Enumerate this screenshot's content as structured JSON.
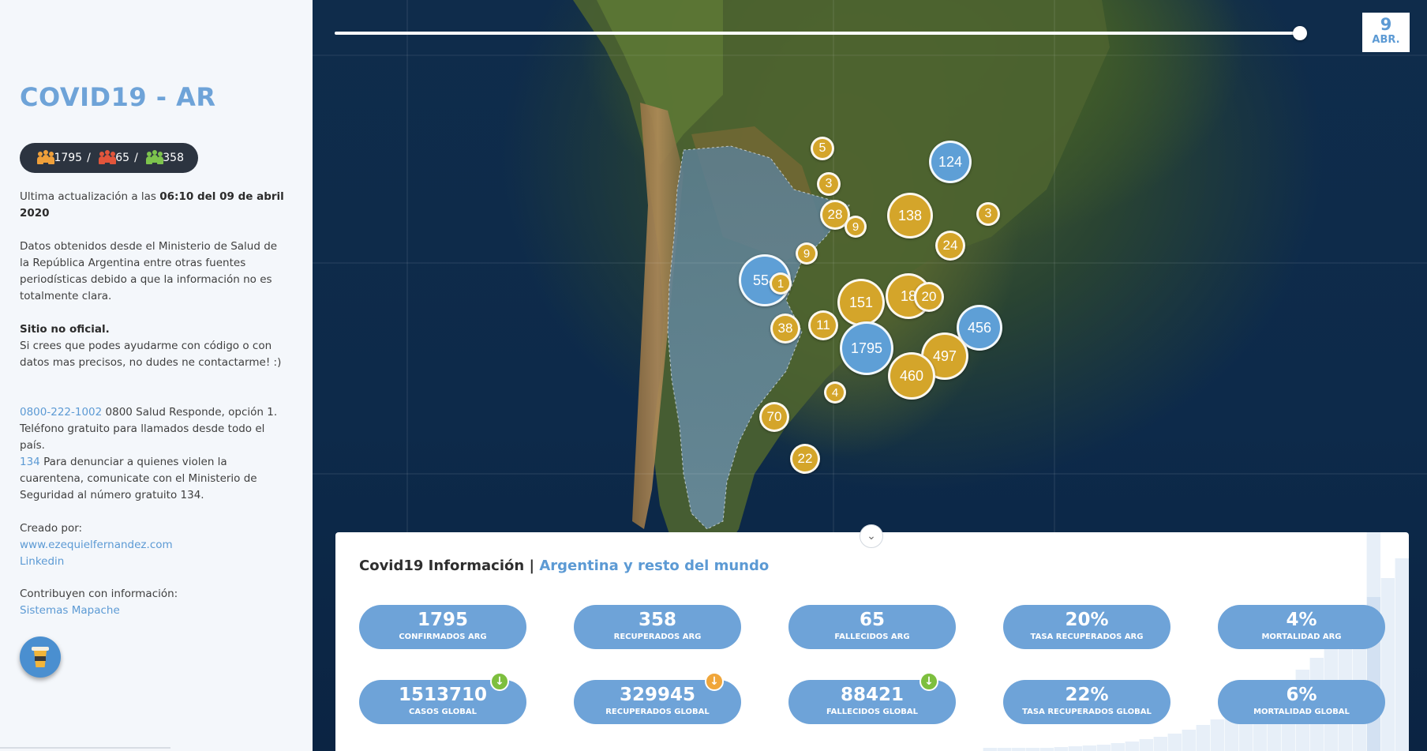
{
  "sidebar": {
    "title": "COVID19 - AR",
    "stats": {
      "confirmed": "1795",
      "deaths": "65",
      "recovered": "358",
      "sep": "/"
    },
    "update_prefix": "Ultima actualización a las ",
    "update_bold": "06:10 del 09 de abril 2020",
    "source_text": "Datos obtenidos desde el Ministerio de Salud de la República Argentina entre otras fuentes periodísticas debido a que la información no es totalmente clara.",
    "unofficial_title": "Sitio no oficial.",
    "unofficial_text": "Si crees que podes ayudarme con código o con datos mas precisos, no dudes ne contactarme! :)",
    "phone_link": "0800-222-1002",
    "phone_text": " 0800 Salud Responde, opción 1. Teléfono gratuito para llamados desde todo el país.",
    "security_link": "134",
    "security_text": " Para denunciar a quienes violen la cuarentena, comunicate con el Ministerio de Seguridad al número gratuito 134.",
    "created_by": "Creado por:",
    "author_link": "www.ezequielfernandez.com",
    "linkedin_link": "Linkedin",
    "contributors_label": "Contribuyen con información:",
    "contributor_link": "Sistemas Mapache",
    "coffee_icon": "coffee-cup-icon"
  },
  "map": {
    "date_day": "9",
    "date_month": "ABR.",
    "timeline_progress": 1.0,
    "clusters": [
      {
        "value": "5",
        "color": "gold"
      },
      {
        "value": "124",
        "color": "blue"
      },
      {
        "value": "3",
        "color": "gold"
      },
      {
        "value": "28",
        "color": "gold"
      },
      {
        "value": "9",
        "color": "gold"
      },
      {
        "value": "138",
        "color": "gold"
      },
      {
        "value": "3",
        "color": "gold"
      },
      {
        "value": "24",
        "color": "gold"
      },
      {
        "value": "9",
        "color": "gold"
      },
      {
        "value": "554",
        "color": "blue"
      },
      {
        "value": "1",
        "color": "gold"
      },
      {
        "value": "151",
        "color": "gold"
      },
      {
        "value": "18",
        "color": "gold"
      },
      {
        "value": "20",
        "color": "gold"
      },
      {
        "value": "456",
        "color": "blue"
      },
      {
        "value": "38",
        "color": "gold"
      },
      {
        "value": "11",
        "color": "gold"
      },
      {
        "value": "1795",
        "color": "blue"
      },
      {
        "value": "497",
        "color": "gold"
      },
      {
        "value": "460",
        "color": "gold"
      },
      {
        "value": "4",
        "color": "gold"
      },
      {
        "value": "70",
        "color": "gold"
      },
      {
        "value": "22",
        "color": "gold"
      }
    ]
  },
  "info": {
    "title_main": "Covid19 Información",
    "title_sep": " | ",
    "title_accent": "Argentina y resto del mundo",
    "stats_row1": [
      {
        "value": "1795",
        "label": "CONFIRMADOS ARG"
      },
      {
        "value": "358",
        "label": "RECUPERADOS ARG"
      },
      {
        "value": "65",
        "label": "FALLECIDOS ARG"
      },
      {
        "value": "20%",
        "label": "TASA RECUPERADOS ARG"
      },
      {
        "value": "4%",
        "label": "MORTALIDAD ARG"
      }
    ],
    "stats_row2": [
      {
        "value": "1513710",
        "label": "CASOS GLOBAL",
        "trend": "down",
        "trend_color": "#7dbf3e"
      },
      {
        "value": "329945",
        "label": "RECUPERADOS GLOBAL",
        "trend": "down",
        "trend_color": "#f0a63a"
      },
      {
        "value": "88421",
        "label": "FALLECIDOS GLOBAL",
        "trend": "down",
        "trend_color": "#7dbf3e"
      },
      {
        "value": "22%",
        "label": "TASA RECUPERADOS GLOBAL"
      },
      {
        "value": "6%",
        "label": "MORTALIDAD GLOBAL"
      }
    ],
    "trend_icon": "arrow-down-icon",
    "collapse_icon": "chevron-down-icon"
  },
  "colors": {
    "accent": "#6ea3d8",
    "gold": "#d4a52a",
    "blue": "#5e9fd6",
    "dark_pill": "#2c3440"
  }
}
